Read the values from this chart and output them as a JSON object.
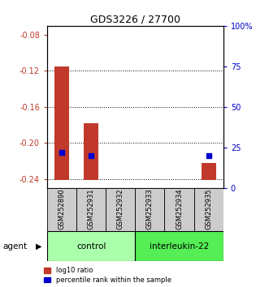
{
  "title": "GDS3226 / 27700",
  "samples": [
    "GSM252890",
    "GSM252931",
    "GSM252932",
    "GSM252933",
    "GSM252934",
    "GSM252935"
  ],
  "bar_bottom": [
    -0.241,
    -0.241,
    0.0,
    0.0,
    0.0,
    -0.241
  ],
  "bar_top": [
    -0.115,
    -0.178,
    0.0,
    0.0,
    0.0,
    -0.222
  ],
  "percentile_rank_pct": [
    22.0,
    20.0,
    null,
    null,
    null,
    20.0
  ],
  "ylim": [
    -0.25,
    -0.07
  ],
  "yticks_left": [
    -0.08,
    -0.12,
    -0.16,
    -0.2,
    -0.24
  ],
  "yticks_right_pct": [
    100,
    75,
    50,
    25,
    0
  ],
  "bar_color": "#c0392b",
  "percentile_color": "#0000cc",
  "left_axis_color": "#c0392b",
  "right_axis_color": "#0000cc",
  "grid_color": "#000000",
  "bg_color": "#ffffff",
  "sample_bg_color": "#cccccc",
  "control_color": "#aaffaa",
  "interleukin_color": "#55ee55",
  "legend_bar_label": "log10 ratio",
  "legend_pct_label": "percentile rank within the sample",
  "agent_label": "agent",
  "control_label": "control",
  "interleukin_label": "interleukin-22",
  "n_control": 3,
  "n_interleukin": 3
}
